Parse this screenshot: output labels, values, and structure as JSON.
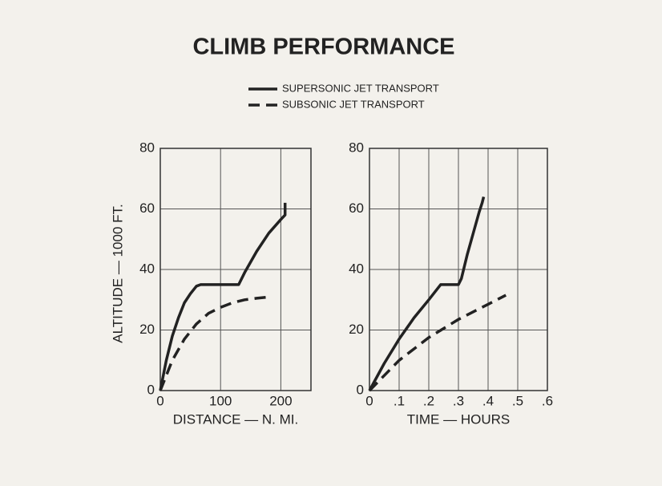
{
  "title": "CLIMB PERFORMANCE",
  "chart_data": [
    {
      "type": "line",
      "xlabel": "DISTANCE — N. MI.",
      "ylabel": "ALTITUDE — 1000 FT.",
      "xlim": [
        0,
        250
      ],
      "xticks": [
        0,
        100,
        200
      ],
      "ylim": [
        0,
        80
      ],
      "yticks": [
        0,
        20,
        40,
        60,
        80
      ],
      "grid": true,
      "series": [
        {
          "name": "SUPERSONIC JET TRANSPORT",
          "color": "#222222",
          "line_style": "solid",
          "x": [
            0,
            10,
            20,
            30,
            40,
            50,
            60,
            67,
            130,
            140,
            160,
            180,
            200,
            207,
            207
          ],
          "values": [
            0,
            10,
            18,
            24,
            29,
            32,
            34.5,
            35,
            35,
            39,
            46,
            52,
            56.5,
            58,
            62
          ]
        },
        {
          "name": "SUBSONIC JET TRANSPORT",
          "color": "#222222",
          "line_style": "dashed",
          "x": [
            0,
            20,
            40,
            60,
            80,
            100,
            120,
            140,
            160,
            185
          ],
          "values": [
            0,
            10,
            17,
            22,
            25.5,
            27.5,
            29,
            30,
            30.5,
            31
          ]
        }
      ]
    },
    {
      "type": "line",
      "xlabel": "TIME — HOURS",
      "xlim": [
        0,
        0.6
      ],
      "xticks": [
        0,
        {
          "value": 0.1,
          "label": ".1"
        },
        {
          "value": 0.2,
          "label": ".2"
        },
        {
          "value": 0.3,
          "label": ".3"
        },
        {
          "value": 0.4,
          "label": ".4"
        },
        {
          "value": 0.5,
          "label": ".5"
        },
        {
          "value": 0.6,
          "label": ".6"
        }
      ],
      "ylim": [
        0,
        80
      ],
      "yticks": [
        0,
        20,
        40,
        60,
        80
      ],
      "grid": true,
      "series": [
        {
          "name": "SUPERSONIC JET TRANSPORT",
          "color": "#222222",
          "line_style": "solid",
          "x": [
            0,
            0.05,
            0.1,
            0.15,
            0.2,
            0.24,
            0.3,
            0.31,
            0.33,
            0.35,
            0.37,
            0.38,
            0.385
          ],
          "values": [
            0,
            9,
            17,
            24,
            30,
            35,
            35,
            37,
            45,
            52,
            59,
            62,
            64
          ]
        },
        {
          "name": "SUBSONIC JET TRANSPORT",
          "color": "#222222",
          "line_style": "dashed",
          "x": [
            0,
            0.1,
            0.2,
            0.3,
            0.4,
            0.46
          ],
          "values": [
            0,
            10,
            17.5,
            23.5,
            28.5,
            31.5
          ]
        }
      ]
    }
  ]
}
